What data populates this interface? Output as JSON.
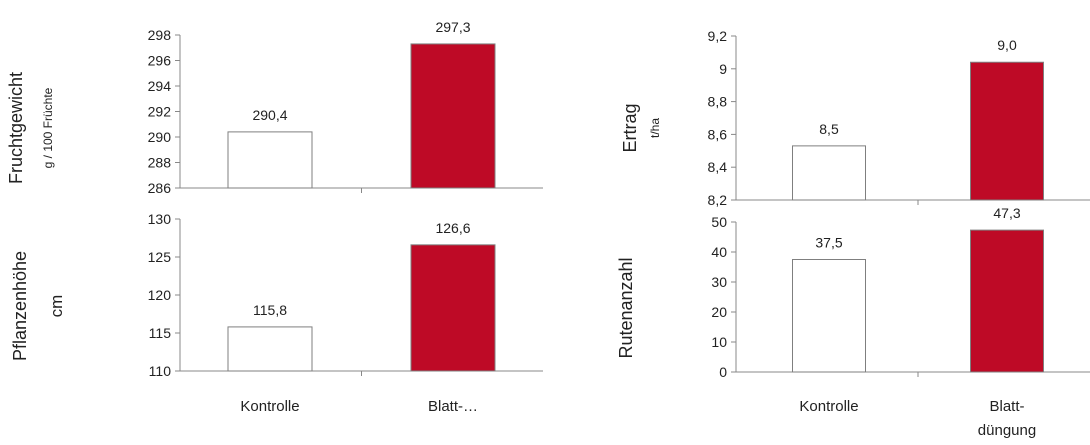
{
  "colors": {
    "axis": "#888888",
    "bar_outline": "#7f7f7f",
    "control_fill": "#ffffff",
    "treatment_fill": "#be0a26",
    "text": "#222222"
  },
  "chart_data": [
    {
      "type": "bar",
      "categories": [
        "Kontrolle",
        "Blatt-…"
      ],
      "values": [
        290.4,
        297.3
      ],
      "value_labels": [
        "290,4",
        "297,3"
      ],
      "ylabel": "Fruchtgewicht",
      "ylabel_unit": "g / 100 Früchte",
      "ylim": [
        286,
        298
      ],
      "yticks": [
        "286",
        "288",
        "290",
        "292",
        "294",
        "296",
        "298"
      ],
      "grid": false
    },
    {
      "type": "bar",
      "categories": [
        "Kontrolle",
        "Blatt-…"
      ],
      "values": [
        115.8,
        126.6
      ],
      "value_labels": [
        "115,8",
        "126,6"
      ],
      "ylabel": "Pflanzenhöhe",
      "ylabel_unit": "cm",
      "ylim": [
        110,
        130
      ],
      "yticks": [
        "110",
        "115",
        "120",
        "125",
        "130"
      ],
      "grid": false
    },
    {
      "type": "bar",
      "categories": [
        "Kontrolle",
        "Blatt-düngung"
      ],
      "values": [
        8.53,
        9.04
      ],
      "value_labels": [
        "8,5",
        "9,0"
      ],
      "ylabel": "Ertrag",
      "ylabel_unit": "t/ha",
      "ylim": [
        8.2,
        9.2
      ],
      "yticks": [
        "8,2",
        "8,4",
        "8,6",
        "8,8",
        "9",
        "9,2"
      ],
      "grid": false
    },
    {
      "type": "bar",
      "categories": [
        "Kontrolle",
        "Blatt-düngung"
      ],
      "values": [
        37.5,
        47.3
      ],
      "value_labels": [
        "37,5",
        "47,3"
      ],
      "ylabel": "Rutenanzahl",
      "ylabel_unit": "",
      "ylim": [
        0,
        50
      ],
      "yticks": [
        "0",
        "10",
        "20",
        "30",
        "40",
        "50"
      ],
      "grid": false
    }
  ]
}
